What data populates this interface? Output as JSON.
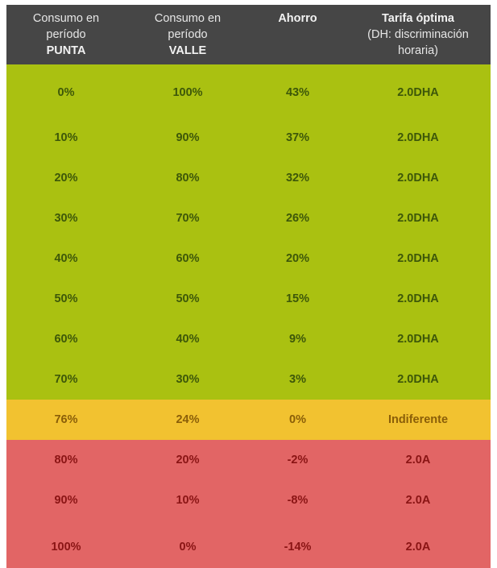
{
  "header": {
    "col1": {
      "line1": "Consumo en",
      "line2": "período",
      "bold": "PUNTA"
    },
    "col2": {
      "line1": "Consumo en",
      "line2": "período",
      "bold": "VALLE"
    },
    "col3": {
      "bold": "Ahorro"
    },
    "col4": {
      "bold": "Tarifa óptima",
      "line2": "(DH: discriminación",
      "line3": "horaria)"
    }
  },
  "colors": {
    "header_bg": "#464646",
    "green": "#aac111",
    "yellow": "#f2c230",
    "red": "#e26565"
  },
  "rows": [
    {
      "punta": "0%",
      "valle": "100%",
      "ahorro": "43%",
      "tarifa": "2.0DHA"
    },
    {
      "punta": "10%",
      "valle": "90%",
      "ahorro": "37%",
      "tarifa": "2.0DHA"
    },
    {
      "punta": "20%",
      "valle": "80%",
      "ahorro": "32%",
      "tarifa": "2.0DHA"
    },
    {
      "punta": "30%",
      "valle": "70%",
      "ahorro": "26%",
      "tarifa": "2.0DHA"
    },
    {
      "punta": "40%",
      "valle": "60%",
      "ahorro": "20%",
      "tarifa": "2.0DHA"
    },
    {
      "punta": "50%",
      "valle": "50%",
      "ahorro": "15%",
      "tarifa": "2.0DHA"
    },
    {
      "punta": "60%",
      "valle": "40%",
      "ahorro": "9%",
      "tarifa": "2.0DHA"
    },
    {
      "punta": "70%",
      "valle": "30%",
      "ahorro": "3%",
      "tarifa": "2.0DHA"
    },
    {
      "punta": "76%",
      "valle": "24%",
      "ahorro": "0%",
      "tarifa": "Indiferente"
    },
    {
      "punta": "80%",
      "valle": "20%",
      "ahorro": "-2%",
      "tarifa": "2.0A"
    },
    {
      "punta": "90%",
      "valle": "10%",
      "ahorro": "-8%",
      "tarifa": "2.0A"
    },
    {
      "punta": "100%",
      "valle": "0%",
      "ahorro": "-14%",
      "tarifa": "2.0A"
    }
  ]
}
